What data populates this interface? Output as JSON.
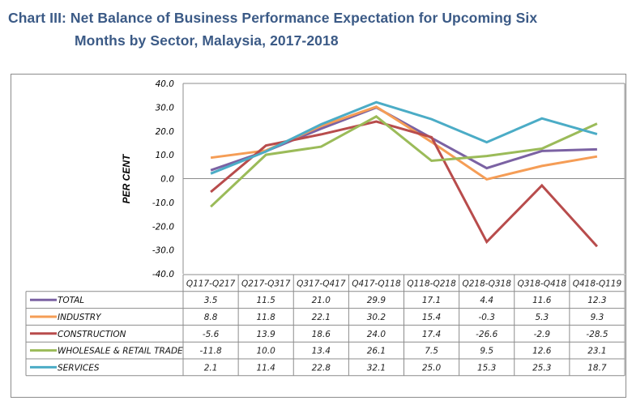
{
  "title": {
    "line1": "Chart III: Net Balance of Business Performance Expectation for Upcoming Six",
    "line2": "Months by Sector, Malaysia, 2017-2018"
  },
  "chart_data": {
    "type": "line",
    "title": "Chart III: Net Balance of Business Performance Expectation for Upcoming Six Months by Sector, Malaysia, 2017-2018",
    "xlabel": "",
    "ylabel": "PER CENT",
    "ylim": [
      -40,
      40
    ],
    "yticks": [
      40,
      30,
      20,
      10,
      0,
      -10,
      -20,
      -30,
      -40
    ],
    "ytick_labels": [
      "40.0",
      "30.0",
      "20.0",
      "10.0",
      "0.0",
      "-10.0",
      "-20.0",
      "-30.0",
      "-40.0"
    ],
    "grid": false,
    "legend": "data-table-below",
    "categories": [
      "Q117-Q217",
      "Q217-Q317",
      "Q317-Q417",
      "Q417-Q118",
      "Q118-Q218",
      "Q218-Q318",
      "Q318-Q418",
      "Q418-Q119"
    ],
    "series": [
      {
        "name": "TOTAL",
        "color": "#7b62a3",
        "values": [
          3.5,
          11.5,
          21.0,
          29.9,
          17.1,
          4.4,
          11.6,
          12.3
        ],
        "labels": [
          "3.5",
          "11.5",
          "21.0",
          "29.9",
          "17.1",
          "4.4",
          "11.6",
          "12.3"
        ]
      },
      {
        "name": "INDUSTRY",
        "color": "#f59d56",
        "values": [
          8.8,
          11.8,
          22.1,
          30.2,
          15.4,
          -0.3,
          5.3,
          9.3
        ],
        "labels": [
          "8.8",
          "11.8",
          "22.1",
          "30.2",
          "15.4",
          "-0.3",
          "5.3",
          "9.3"
        ]
      },
      {
        "name": "CONSTRUCTION",
        "color": "#b84c4c",
        "values": [
          -5.6,
          13.9,
          18.6,
          24.0,
          17.4,
          -26.6,
          -2.9,
          -28.5
        ],
        "labels": [
          "-5.6",
          "13.9",
          "18.6",
          "24.0",
          "17.4",
          "-26.6",
          "-2.9",
          "-28.5"
        ]
      },
      {
        "name": "WHOLESALE & RETAIL TRADE",
        "color": "#9bbb59",
        "values": [
          -11.8,
          10.0,
          13.4,
          26.1,
          7.5,
          9.5,
          12.6,
          23.1
        ],
        "labels": [
          "-11.8",
          "10.0",
          "13.4",
          "26.1",
          "7.5",
          "9.5",
          "12.6",
          "23.1"
        ]
      },
      {
        "name": "SERVICES",
        "color": "#4bacc6",
        "values": [
          2.1,
          11.4,
          22.8,
          32.1,
          25.0,
          15.3,
          25.3,
          18.7
        ],
        "labels": [
          "2.1",
          "11.4",
          "22.8",
          "32.1",
          "25.0",
          "15.3",
          "25.3",
          "18.7"
        ]
      }
    ]
  }
}
